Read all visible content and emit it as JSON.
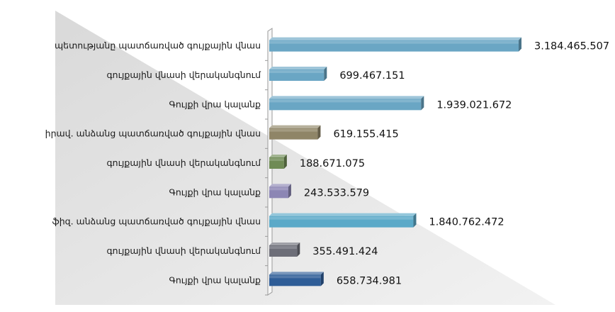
{
  "chart_data": {
    "type": "bar",
    "orientation": "horizontal",
    "title": "",
    "xlabel": "",
    "ylabel": "",
    "grid": false,
    "legend": "none",
    "categories": [
      "պետությանը պատճառված գույքային վնաս",
      "գույքային վնասի վերականգնում",
      "Գույքի  վրա կալանք",
      "իրավ. անձանց պատճառված գույքային վնաս",
      "գույքային վնասի վերականգնում",
      "Գույքի  վրա կալանք",
      "ֆիզ. անձանց պատճառված գույքային վնաս",
      "գույքային վնասի վերականգնում",
      "Գույքի  վրա կալանք"
    ],
    "values": [
      3184465507,
      699467151,
      1939021672,
      619155415,
      188671075,
      243533579,
      1840762472,
      355491424,
      658734981
    ],
    "value_labels": [
      "3.184.465.507",
      "699.467.151",
      "1.939.021.672",
      "619.155.415",
      "188.671.075",
      "243.533.579",
      "1.840.762.472",
      "355.491.424",
      "658.734.981"
    ],
    "xlim": [
      0,
      3184465507
    ],
    "colors": [
      "#6aa6c4",
      "#6aa6c4",
      "#6aa6c4",
      "#8f8567",
      "#6f8b55",
      "#8c86b4",
      "#5ba9c8",
      "#6d6e78",
      "#2f5d97"
    ]
  }
}
